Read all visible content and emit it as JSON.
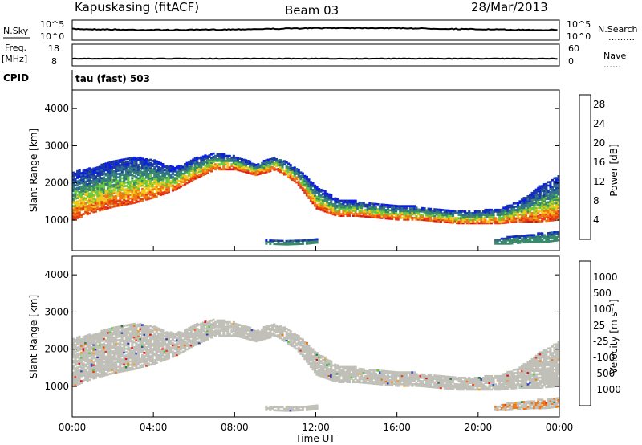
{
  "header": {
    "station": "Kapuskasing (fitACF)",
    "beam": "Beam 03",
    "date": "28/Mar/2013"
  },
  "side_labels": {
    "nsky": "N.Sky",
    "nsearch": "N.Search",
    "nsearch_dots": "………",
    "freq_top": "Freq.",
    "freq_unit": "[MHz]",
    "nave": "Nave",
    "nave_dots": "……",
    "cpid": "CPID",
    "cpid_value": "tau (fast) 503"
  },
  "noise_panel": {
    "left_ticks": [
      "10^5",
      "10^0"
    ],
    "right_ticks": [
      "10^5",
      "10^0"
    ]
  },
  "freq_panel": {
    "left_ticks": [
      "18",
      "8"
    ],
    "right_ticks": [
      "60",
      "0"
    ]
  },
  "colors": {
    "power": [
      "#0a1ee6",
      "#1e3c9e",
      "#2e6e8e",
      "#3a8a6a",
      "#6cc83c",
      "#f0c81e",
      "#f07814",
      "#e63c14",
      "#e01414"
    ],
    "velocity": [
      "#2838b0",
      "#3c4cc8",
      "#2e7a4e",
      "#5ac83c",
      "#c0c0b8",
      "#f0a028",
      "#f07814",
      "#e83c14",
      "#e01414"
    ],
    "ground_scatter": "#c0c0b8"
  },
  "chart_data": [
    {
      "type": "heatmap",
      "name_ref": "power",
      "xlabel": "",
      "ylabel": "Slant Range [km]",
      "x_ticks": [
        "00:00",
        "04:00",
        "08:00",
        "12:00",
        "16:00",
        "20:00",
        "00:00"
      ],
      "xlim_hours": [
        0,
        24
      ],
      "ylim_km": [
        180,
        4500
      ],
      "y_ticks": [
        1000,
        2000,
        3000,
        4000
      ],
      "colorbar": {
        "label": "Power [dB]",
        "ticks": [
          4,
          8,
          12,
          16,
          20,
          24,
          28
        ],
        "range": [
          0,
          30
        ]
      },
      "scatter_band": {
        "time_h": [
          0,
          1,
          2,
          3,
          4,
          5,
          6,
          7,
          8,
          9,
          10,
          11,
          12,
          13,
          14,
          15,
          16,
          17,
          18,
          19,
          20,
          21,
          22,
          23,
          24
        ],
        "lower_km": [
          1000,
          1200,
          1350,
          1450,
          1600,
          1800,
          2100,
          2350,
          2350,
          2200,
          2350,
          2000,
          1300,
          1100,
          1100,
          1050,
          1000,
          1000,
          950,
          900,
          900,
          900,
          950,
          950,
          1000
        ],
        "upper_km": [
          2300,
          2400,
          2600,
          2700,
          2600,
          2400,
          2650,
          2800,
          2700,
          2500,
          2700,
          2400,
          1900,
          1550,
          1500,
          1450,
          1400,
          1350,
          1300,
          1250,
          1250,
          1300,
          1500,
          1900,
          2200
        ]
      },
      "far_band": {
        "time_h": [
          20.8,
          21.5,
          22.5,
          23.3,
          24
        ],
        "lower_km": [
          350,
          350,
          400,
          400,
          450
        ],
        "upper_km": [
          450,
          550,
          600,
          650,
          700
        ]
      },
      "near_band": {
        "time_h": [
          9.5,
          10.5,
          11.5,
          12.0
        ],
        "lower_km": [
          350,
          330,
          350,
          380
        ],
        "upper_km": [
          450,
          450,
          460,
          470
        ]
      }
    },
    {
      "type": "heatmap",
      "name_ref": "velocity",
      "xlabel": "Time UT",
      "ylabel": "Slant Range [km]",
      "x_ticks": [
        "00:00",
        "04:00",
        "08:00",
        "12:00",
        "16:00",
        "20:00",
        "00:00"
      ],
      "xlim_hours": [
        0,
        24
      ],
      "ylim_km": [
        180,
        4500
      ],
      "y_ticks": [
        1000,
        2000,
        3000,
        4000
      ],
      "colorbar": {
        "label": "Velocity [m s⁻¹]",
        "ticks": [
          1000,
          500,
          100,
          25,
          -25,
          -100,
          -500,
          -1000
        ]
      }
    }
  ]
}
